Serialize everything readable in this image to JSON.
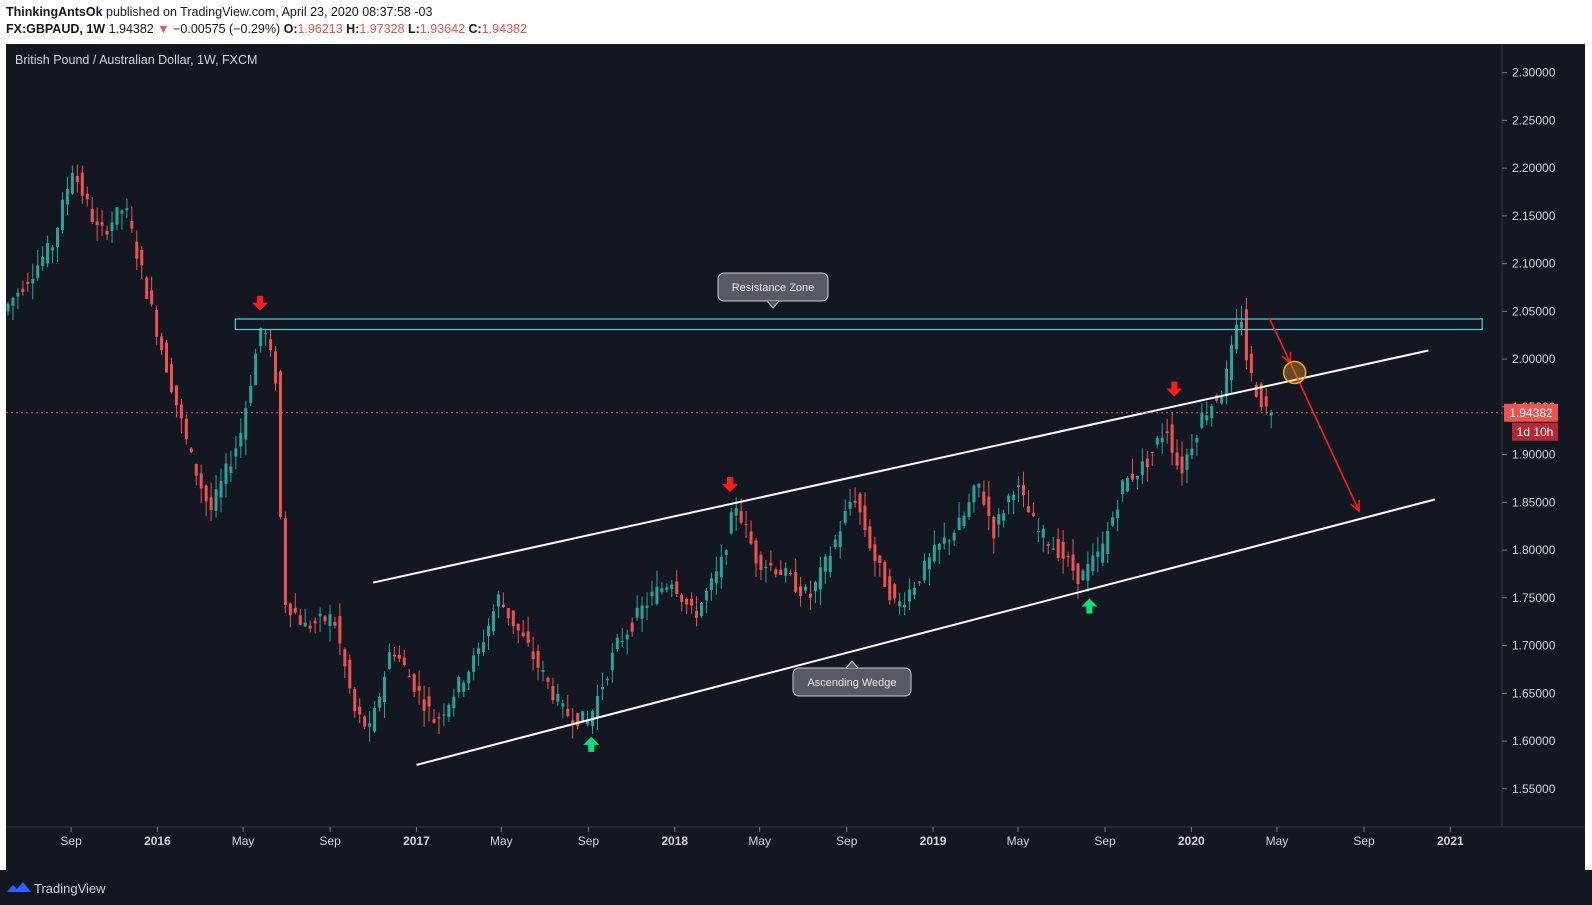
{
  "header": {
    "author": "ThinkingAntsOk",
    "published_text": "published on TradingView.com, April 23, 2020 08:37:58 -03",
    "symbol": "FX:GBPAUD, 1W",
    "last": "1.94382",
    "change": "−0.00575 (−0.29%)",
    "o_label": "O:",
    "o_value": "1.96213",
    "h_label": "H:",
    "h_value": "1.97328",
    "l_label": "L:",
    "l_value": "1.93642",
    "c_label": "C:",
    "c_value": "1.94382"
  },
  "footer": {
    "brand": "TradingView"
  },
  "colors": {
    "background": "#131722",
    "up": "#26a69a",
    "down": "#ef5350",
    "resistance": "#4dd0e1",
    "wedge": "#ffffff",
    "arrow_red": "#ff1a1a",
    "arrow_green": "#00e676",
    "circle": "#f9a825"
  },
  "chart_data": {
    "type": "candlestick",
    "title": "British Pound / Australian Dollar, 1W, FXCM",
    "ylim": [
      1.51,
      2.33
    ],
    "y_ticks": [
      "2.30000",
      "2.25000",
      "2.20000",
      "2.15000",
      "2.10000",
      "2.05000",
      "2.00000",
      "1.95000",
      "1.90000",
      "1.85000",
      "1.80000",
      "1.75000",
      "1.70000",
      "1.65000",
      "1.60000",
      "1.55000"
    ],
    "y_tick_values": [
      2.3,
      2.25,
      2.2,
      2.15,
      2.1,
      2.05,
      2.0,
      1.95,
      1.9,
      1.85,
      1.8,
      1.75,
      1.7,
      1.65,
      1.6,
      1.55
    ],
    "x_ticks": [
      "Sep",
      "2016",
      "May",
      "Sep",
      "2017",
      "May",
      "Sep",
      "2018",
      "May",
      "Sep",
      "2019",
      "May",
      "Sep",
      "2020",
      "May",
      "Sep",
      "2021"
    ],
    "x_tick_dates": [
      "2015-09-01",
      "2016-01-01",
      "2016-05-01",
      "2016-09-01",
      "2017-01-01",
      "2017-05-01",
      "2017-09-01",
      "2018-01-01",
      "2018-05-01",
      "2018-09-01",
      "2019-01-01",
      "2019-05-01",
      "2019-09-01",
      "2020-01-01",
      "2020-05-01",
      "2020-09-01",
      "2021-01-01"
    ],
    "x_range": [
      "2015-06-01",
      "2021-03-15"
    ],
    "price_path": [
      [
        "2015-06-01",
        2.05
      ],
      [
        "2015-08-10",
        2.12
      ],
      [
        "2015-09-07",
        2.2
      ],
      [
        "2015-10-15",
        2.13
      ],
      [
        "2015-11-20",
        2.16
      ],
      [
        "2016-01-01",
        2.04
      ],
      [
        "2016-02-20",
        1.9
      ],
      [
        "2016-03-20",
        1.84
      ],
      [
        "2016-05-01",
        1.92
      ],
      [
        "2016-06-01",
        2.04
      ],
      [
        "2016-06-20",
        1.98
      ],
      [
        "2016-07-01",
        1.75
      ],
      [
        "2016-08-01",
        1.72
      ],
      [
        "2016-09-10",
        1.73
      ],
      [
        "2016-10-10",
        1.63
      ],
      [
        "2016-11-01",
        1.61
      ],
      [
        "2016-12-01",
        1.7
      ],
      [
        "2017-01-01",
        1.66
      ],
      [
        "2017-02-01",
        1.62
      ],
      [
        "2017-04-01",
        1.69
      ],
      [
        "2017-05-01",
        1.75
      ],
      [
        "2017-06-10",
        1.7
      ],
      [
        "2017-08-01",
        1.63
      ],
      [
        "2017-09-05",
        1.62
      ],
      [
        "2017-10-15",
        1.7
      ],
      [
        "2017-12-01",
        1.75
      ],
      [
        "2018-01-01",
        1.77
      ],
      [
        "2018-02-01",
        1.73
      ],
      [
        "2018-03-10",
        1.78
      ],
      [
        "2018-04-01",
        1.85
      ],
      [
        "2018-05-01",
        1.79
      ],
      [
        "2018-06-01",
        1.78
      ],
      [
        "2018-07-15",
        1.75
      ],
      [
        "2018-08-15",
        1.8
      ],
      [
        "2018-09-15",
        1.86
      ],
      [
        "2018-10-15",
        1.79
      ],
      [
        "2018-11-15",
        1.74
      ],
      [
        "2018-12-15",
        1.77
      ],
      [
        "2019-01-10",
        1.8
      ],
      [
        "2019-02-15",
        1.83
      ],
      [
        "2019-03-10",
        1.87
      ],
      [
        "2019-04-01",
        1.82
      ],
      [
        "2019-05-01",
        1.87
      ],
      [
        "2019-06-01",
        1.82
      ],
      [
        "2019-07-01",
        1.8
      ],
      [
        "2019-08-01",
        1.77
      ],
      [
        "2019-09-01",
        1.8
      ],
      [
        "2019-10-01",
        1.87
      ],
      [
        "2019-11-01",
        1.89
      ],
      [
        "2019-12-01",
        1.93
      ],
      [
        "2019-12-20",
        1.88
      ],
      [
        "2020-01-20",
        1.94
      ],
      [
        "2020-02-20",
        1.97
      ],
      [
        "2020-03-15",
        2.05
      ],
      [
        "2020-03-25",
        1.99
      ],
      [
        "2020-04-10",
        1.96
      ],
      [
        "2020-04-23",
        1.94382
      ]
    ],
    "last_price": 1.94382,
    "price_label": "1.94382",
    "countdown_label": "1d 10h",
    "drawings": {
      "resistance_zone": {
        "y_top": 2.042,
        "y_bottom": 2.031,
        "x_start": "2016-04-20",
        "x_end": "2021-02-15"
      },
      "upper_wedge_line": {
        "start": [
          "2016-11-01",
          1.766
        ],
        "end": [
          "2020-12-01",
          2.009
        ]
      },
      "lower_wedge_line": {
        "start": [
          "2017-01-01",
          1.575
        ],
        "end": [
          "2020-12-10",
          1.853
        ]
      },
      "sell_arrows": [
        [
          "2016-05-25",
          2.058
        ],
        [
          "2018-03-20",
          1.868
        ],
        [
          "2019-12-08",
          1.968
        ]
      ],
      "buy_arrows": [
        [
          "2017-09-05",
          1.597
        ],
        [
          "2019-08-10",
          1.742
        ]
      ],
      "projection": [
        [
          "2020-04-20",
          2.043
        ],
        [
          "2020-05-20",
          1.996
        ],
        [
          "2020-08-25",
          1.841
        ]
      ],
      "retest_circle": [
        "2020-05-26",
        1.986
      ]
    },
    "annotations": [
      "Resistance Zone",
      "Ascending Wedge"
    ],
    "grid": false
  }
}
